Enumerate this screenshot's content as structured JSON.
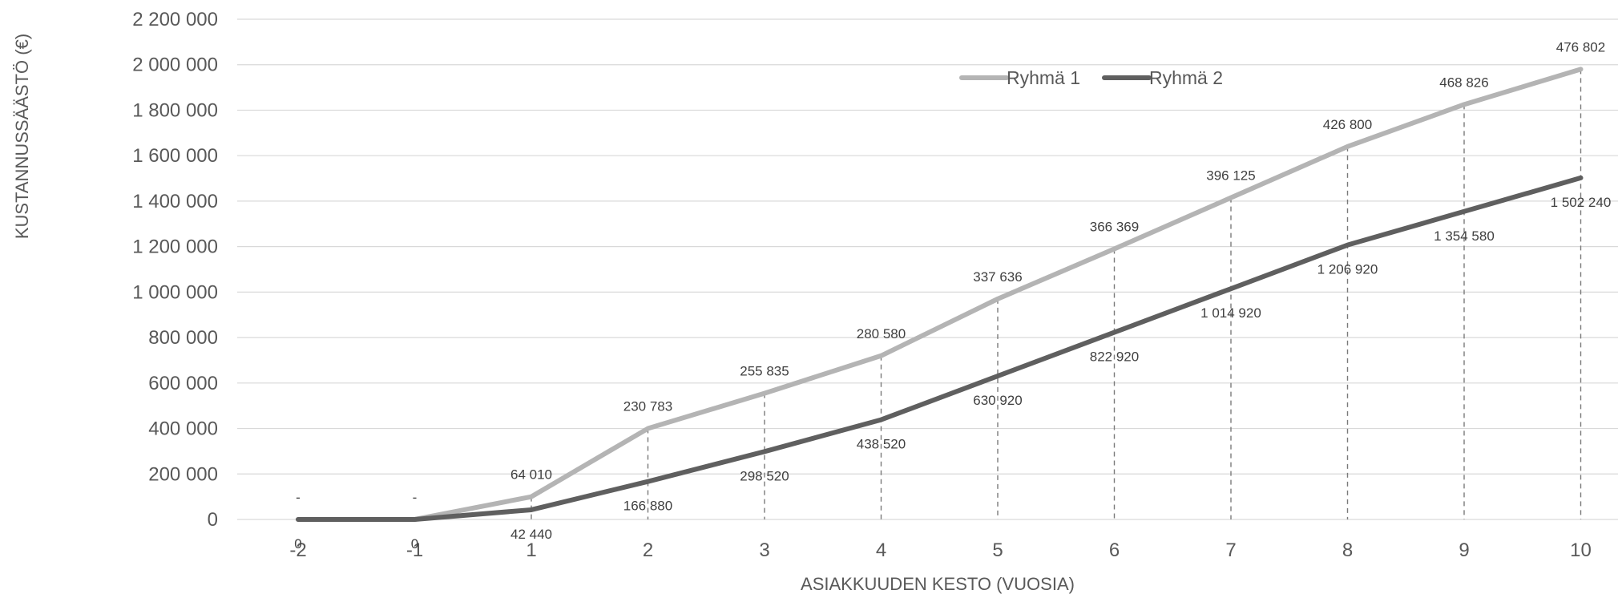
{
  "chart_data": {
    "type": "line",
    "x": [
      -2,
      -1,
      1,
      2,
      3,
      4,
      5,
      6,
      7,
      8,
      9,
      10
    ],
    "x_tick_labels": [
      "-2",
      "-1",
      "1",
      "2",
      "3",
      "4",
      "5",
      "6",
      "7",
      "8",
      "9",
      "10"
    ],
    "y_tick_labels": [
      "0",
      "200 000",
      "400 000",
      "600 000",
      "800 000",
      "1 000 000",
      "1 200 000",
      "1 400 000",
      "1 600 000",
      "1 800 000",
      "2 000 000",
      "2 200 000"
    ],
    "ylim": [
      0,
      2200000
    ],
    "xlabel": "ASIAKKUUDEN KESTO (VUOSIA)",
    "ylabel": "KUSTANNUSSÄÄSTÖ (€)",
    "grid": "horizontal",
    "drop_lines": true,
    "legend_position": "top-center",
    "series": [
      {
        "name": "Ryhmä 1",
        "color": "#B4B4B4",
        "values": [
          0,
          0,
          100000,
          400000,
          555000,
          720000,
          970000,
          1190000,
          1415000,
          1640000,
          1825000,
          1980000
        ],
        "data_labels": [
          "-",
          "-",
          "64 010",
          "230 783",
          "255 835",
          "280 580",
          "337 636",
          "366 369",
          "396 125",
          "426 800",
          "468 826",
          "476 802"
        ]
      },
      {
        "name": "Ryhmä 2",
        "color": "#5F5F5F",
        "values": [
          0,
          0,
          42440,
          166880,
          298520,
          438520,
          630920,
          822920,
          1014920,
          1206920,
          1354580,
          1502240
        ],
        "data_labels": [
          "0",
          "0",
          "42 440",
          "166 880",
          "298 520",
          "438 520",
          "630 920",
          "822 920",
          "1 014 920",
          "1 206 920",
          "1 354 580",
          "1 502 240"
        ]
      }
    ]
  }
}
